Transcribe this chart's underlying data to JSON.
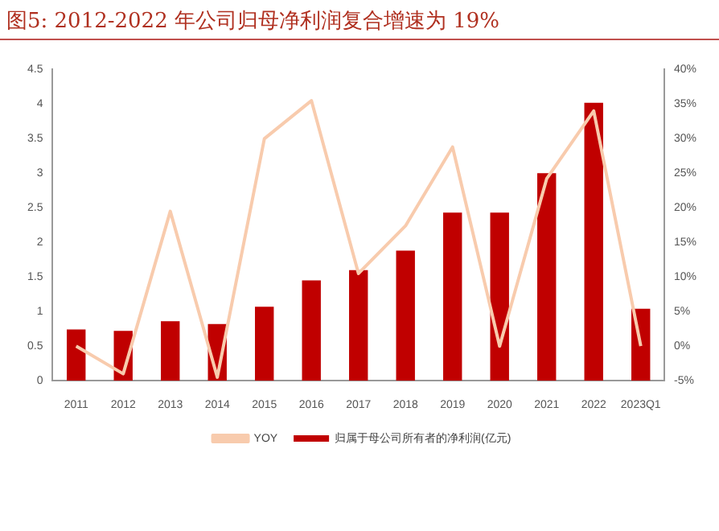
{
  "chart_data": {
    "type": "bar",
    "title": "图5:   2012-2022 年公司归母净利润复合增速为 19%",
    "categories": [
      "2011",
      "2012",
      "2013",
      "2014",
      "2015",
      "2016",
      "2017",
      "2018",
      "2019",
      "2020",
      "2021",
      "2022",
      "2023Q1"
    ],
    "series": [
      {
        "name": "归属于母公司所有者的净利润(亿元)",
        "color": "#c00000",
        "values": [
          0.74,
          0.72,
          0.86,
          0.82,
          1.07,
          1.45,
          1.6,
          1.88,
          2.43,
          2.43,
          3.0,
          4.02,
          1.04
        ]
      },
      {
        "name": "YOY",
        "type": "line",
        "axis": "y2",
        "color": "#f8cbad",
        "values": [
          0,
          -4,
          19.5,
          -4.5,
          30,
          35.5,
          10.5,
          17.4,
          28.8,
          0,
          24.2,
          34,
          0
        ]
      }
    ],
    "ylim": [
      0,
      4.5
    ],
    "yticks": [
      0,
      0.5,
      1,
      1.5,
      2,
      2.5,
      3,
      3.5,
      4,
      4.5
    ],
    "y2lim": [
      -5,
      40
    ],
    "y2ticks": [
      {
        "value": -5,
        "label": "-5%"
      },
      {
        "value": 0,
        "label": "0%"
      },
      {
        "value": 5,
        "label": "5%"
      },
      {
        "value": 10,
        "label": "10%"
      },
      {
        "value": 15,
        "label": "15%"
      },
      {
        "value": 20,
        "label": "20%"
      },
      {
        "value": 25,
        "label": "25%"
      },
      {
        "value": 30,
        "label": "30%"
      },
      {
        "value": 35,
        "label": "35%"
      },
      {
        "value": 40,
        "label": "40%"
      }
    ],
    "legend": "bottom",
    "marker": "none"
  }
}
